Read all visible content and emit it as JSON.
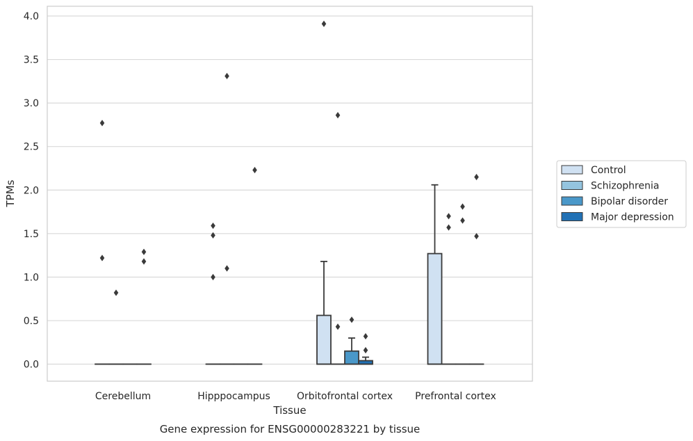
{
  "chart_data": {
    "type": "box",
    "caption": "Gene expression for ENSG00000283221 by tissue",
    "xlabel": "Tissue",
    "ylabel": "TPMs",
    "ylim": [
      -0.19,
      4.1
    ],
    "yticks": [
      "0.0",
      "0.5",
      "1.0",
      "1.5",
      "2.0",
      "2.5",
      "3.0",
      "3.5",
      "4.0"
    ],
    "ytick_values": [
      0,
      0.5,
      1.0,
      1.5,
      2.0,
      2.5,
      3.0,
      3.5,
      4.0
    ],
    "grid": "horizontal",
    "legend_placement": "right",
    "categories": [
      "Cerebellum",
      "Hipppocampus",
      "Orbitofrontal cortex",
      "Prefrontal cortex"
    ],
    "series": [
      {
        "name": "Control",
        "color": "#d0e1f2",
        "boxes": [
          {
            "q1": 0,
            "median": 0,
            "q3": 0,
            "whisker_low": 0,
            "whisker_high": 0,
            "outliers": [
              2.77,
              1.22
            ]
          },
          {
            "q1": 0,
            "median": 0,
            "q3": 0,
            "whisker_low": 0,
            "whisker_high": 0,
            "outliers": [
              1.59,
              1.48,
              1.0
            ]
          },
          {
            "q1": 0,
            "median": 0,
            "q3": 0.56,
            "whisker_low": 0,
            "whisker_high": 1.18,
            "outliers": [
              3.91
            ]
          },
          {
            "q1": 0,
            "median": 0,
            "q3": 1.27,
            "whisker_low": 0,
            "whisker_high": 2.06,
            "outliers": []
          }
        ]
      },
      {
        "name": "Schizophrenia",
        "color": "#94c4df",
        "boxes": [
          {
            "q1": 0,
            "median": 0,
            "q3": 0,
            "whisker_low": 0,
            "whisker_high": 0,
            "outliers": [
              0.82
            ]
          },
          {
            "q1": 0,
            "median": 0,
            "q3": 0,
            "whisker_low": 0,
            "whisker_high": 0,
            "outliers": [
              3.31,
              1.1
            ]
          },
          {
            "q1": 0,
            "median": 0,
            "q3": 0,
            "whisker_low": 0,
            "whisker_high": 0,
            "outliers": [
              2.86,
              0.43
            ]
          },
          {
            "q1": 0,
            "median": 0,
            "q3": 0,
            "whisker_low": 0,
            "whisker_high": 0,
            "outliers": [
              1.7,
              1.57
            ]
          }
        ]
      },
      {
        "name": "Bipolar disorder",
        "color": "#4a98c9",
        "boxes": [
          {
            "q1": 0,
            "median": 0,
            "q3": 0,
            "whisker_low": 0,
            "whisker_high": 0,
            "outliers": []
          },
          {
            "q1": 0,
            "median": 0,
            "q3": 0,
            "whisker_low": 0,
            "whisker_high": 0,
            "outliers": []
          },
          {
            "q1": 0,
            "median": 0,
            "q3": 0.15,
            "whisker_low": 0,
            "whisker_high": 0.3,
            "outliers": [
              0.51
            ]
          },
          {
            "q1": 0,
            "median": 0,
            "q3": 0,
            "whisker_low": 0,
            "whisker_high": 0,
            "outliers": [
              1.81,
              1.65
            ]
          }
        ]
      },
      {
        "name": "Major depression",
        "color": "#2171b5",
        "boxes": [
          {
            "q1": 0,
            "median": 0,
            "q3": 0,
            "whisker_low": 0,
            "whisker_high": 0,
            "outliers": [
              1.29,
              1.18
            ]
          },
          {
            "q1": 0,
            "median": 0,
            "q3": 0,
            "whisker_low": 0,
            "whisker_high": 0,
            "outliers": [
              2.23
            ]
          },
          {
            "q1": 0,
            "median": 0,
            "q3": 0.04,
            "whisker_low": 0,
            "whisker_high": 0.08,
            "outliers": [
              0.32,
              0.16
            ]
          },
          {
            "q1": 0,
            "median": 0,
            "q3": 0,
            "whisker_low": 0,
            "whisker_high": 0,
            "outliers": [
              2.15,
              1.47
            ]
          }
        ]
      }
    ]
  }
}
